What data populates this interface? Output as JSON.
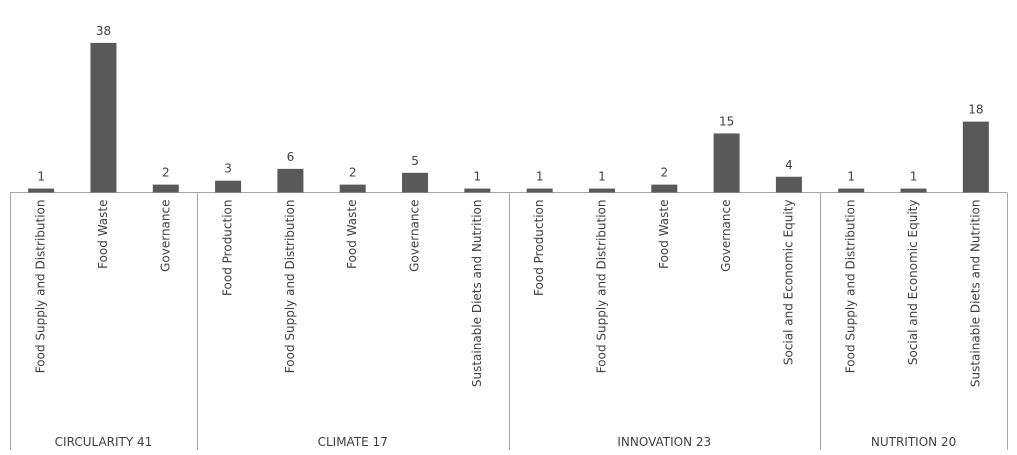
{
  "chart_data": {
    "type": "bar",
    "title": "",
    "xlabel": "",
    "ylabel": "",
    "ylim": [
      0,
      40
    ],
    "grid": false,
    "legend": "none",
    "bar_color": "#595959",
    "axis_color": "#a6a6a6",
    "label_color": "#404040",
    "groups": [
      {
        "label": "CIRCULARITY 41",
        "categories": [
          "Food Supply and Distribution",
          "Food Waste",
          "Governance"
        ],
        "values": [
          1,
          38,
          2
        ]
      },
      {
        "label": "CLIMATE 17",
        "categories": [
          "Food Production",
          "Food Supply and Distribution",
          "Food Waste",
          "Governance",
          "Sustainable Diets and Nutrition"
        ],
        "values": [
          3,
          6,
          2,
          5,
          1
        ]
      },
      {
        "label": "INNOVATION 23",
        "categories": [
          "Food Production",
          "Food Supply and Distribution",
          "Food Waste",
          "Governance",
          "Social and Economic Equity"
        ],
        "values": [
          1,
          1,
          2,
          15,
          4
        ]
      },
      {
        "label": "NUTRITION 20",
        "categories": [
          "Food Supply and Distribution",
          "Social and Economic Equity",
          "Sustainable Diets and Nutrition"
        ],
        "values": [
          1,
          1,
          18
        ]
      }
    ]
  }
}
